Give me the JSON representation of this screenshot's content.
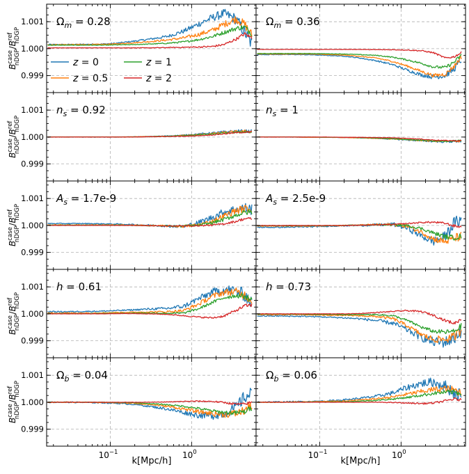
{
  "chart_data": {
    "type": "line",
    "xscale": "log",
    "xlim": [
      0.0165,
      6.2
    ],
    "ylim": [
      0.99837,
      1.00165
    ],
    "xlabel": "k[Mpc/h]",
    "ylabel": {
      "main": "B",
      "sup": "case",
      "sub": "nDGP",
      "den_main": "B",
      "den_sup": "ref",
      "den_sub": "nDGP"
    },
    "x_ticks": [
      {
        "value": 0.1,
        "base": "10",
        "exp": "−1"
      },
      {
        "value": 1,
        "base": "10",
        "exp": "0"
      }
    ],
    "y_ticks": [
      {
        "value": 0.999,
        "label": "0.999"
      },
      {
        "value": 1.0,
        "label": "1.000"
      },
      {
        "value": 1.001,
        "label": "1.001"
      }
    ],
    "legend": {
      "location": "first-panel-lower-left",
      "entries": [
        {
          "series": 0,
          "label": "z = 0"
        },
        {
          "series": 1,
          "label": "z = 0.5"
        },
        {
          "series": 2,
          "label": "z = 1"
        },
        {
          "series": 3,
          "label": "z = 2"
        }
      ]
    },
    "series": [
      {
        "name": "z = 0",
        "color": "#1f77b4"
      },
      {
        "name": "z = 0.5",
        "color": "#ff7f0e"
      },
      {
        "name": "z = 1",
        "color": "#2ca02c"
      },
      {
        "name": "z = 2",
        "color": "#d62728"
      }
    ],
    "k": [
      0.017,
      0.03,
      0.05,
      0.08,
      0.12,
      0.2,
      0.3,
      0.5,
      0.8,
      1.2,
      1.8,
      2.5,
      3.5,
      4.5,
      5.5
    ],
    "panels": [
      {
        "label_sym": "Ω",
        "label_sub": "m",
        "label_val": "0.28",
        "noise": [
          0.00025,
          0.00017,
          0.0001,
          6e-05
        ],
        "values": [
          [
            1.00015,
            1.00015,
            1.00016,
            1.00017,
            1.0002,
            1.00028,
            1.00035,
            1.00045,
            1.00065,
            1.0009,
            1.00115,
            1.0013,
            1.0011,
            1.0006,
            1.00015
          ],
          [
            1.00015,
            1.00015,
            1.00015,
            1.00016,
            1.00018,
            1.00022,
            1.00026,
            1.00032,
            1.0004,
            1.00052,
            1.00068,
            1.0009,
            1.0011,
            1.0009,
            1.0005
          ],
          [
            1.00013,
            1.00013,
            1.00013,
            1.00013,
            1.00014,
            1.00015,
            1.00017,
            1.0002,
            1.00025,
            1.00033,
            1.00045,
            1.0006,
            1.00075,
            1.0008,
            1.00055
          ],
          [
            1.00003,
            1.00003,
            1.00003,
            1.00003,
            1.00003,
            1.00003,
            1.00003,
            1.00004,
            1.00005,
            1.00006,
            1.00008,
            1.00015,
            1.00035,
            1.00055,
            1.0004
          ]
        ]
      },
      {
        "label_sym": "Ω",
        "label_sub": "m",
        "label_val": "0.36",
        "noise": [
          0.00012,
          9e-05,
          7e-05,
          4e-05
        ],
        "values": [
          [
            0.99978,
            0.99978,
            0.99978,
            0.99977,
            0.99975,
            0.99972,
            0.99966,
            0.99955,
            0.9994,
            0.9992,
            0.99902,
            0.99895,
            0.999,
            0.99925,
            0.9996
          ],
          [
            0.9998,
            0.9998,
            0.9998,
            0.9998,
            0.99978,
            0.99976,
            0.99972,
            0.99965,
            0.99952,
            0.99935,
            0.99915,
            0.999,
            0.99905,
            0.99935,
            0.9997
          ],
          [
            0.99982,
            0.99982,
            0.99982,
            0.99982,
            0.99981,
            0.9998,
            0.99978,
            0.99975,
            0.99968,
            0.99958,
            0.99945,
            0.99932,
            0.9993,
            0.9995,
            0.99975
          ],
          [
            0.99997,
            0.99997,
            0.99997,
            0.99997,
            0.99997,
            0.99997,
            0.99997,
            0.99996,
            0.99996,
            0.99995,
            0.99992,
            0.99985,
            0.99965,
            0.9997,
            0.99985
          ]
        ]
      },
      {
        "label_sym": "n",
        "label_sub": "s",
        "label_val": "0.92",
        "noise": [
          6e-05,
          5e-05,
          4e-05,
          3e-05
        ],
        "values": [
          [
            1.0,
            1.0,
            1.0,
            1.0,
            1.0,
            1.00001,
            1.00002,
            1.00004,
            1.00007,
            1.00011,
            1.00015,
            1.00019,
            1.00022,
            1.00022,
            1.0002
          ],
          [
            1.0,
            1.0,
            1.0,
            1.0,
            1.0,
            1.00001,
            1.00002,
            1.00003,
            1.00006,
            1.00009,
            1.00013,
            1.00017,
            1.0002,
            1.00021,
            1.0002
          ],
          [
            1.0,
            1.0,
            1.0,
            1.0,
            1.0,
            1.0,
            1.00001,
            1.00003,
            1.00005,
            1.00008,
            1.00011,
            1.00015,
            1.00018,
            1.0002,
            1.00019
          ],
          [
            1.0,
            1.0,
            1.0,
            1.0,
            1.0,
            1.0,
            1.00001,
            1.00002,
            1.00003,
            1.00005,
            1.00008,
            1.00012,
            1.00016,
            1.00018,
            1.00018
          ]
        ]
      },
      {
        "label_sym": "n",
        "label_sub": "s",
        "label_val": "1",
        "noise": [
          5e-05,
          4e-05,
          3e-05,
          2e-05
        ],
        "values": [
          [
            1.0,
            1.0,
            1.0,
            0.99999,
            0.99999,
            0.99998,
            0.99997,
            0.99995,
            0.99992,
            0.99989,
            0.99986,
            0.99984,
            0.99983,
            0.99984,
            0.99985
          ],
          [
            1.0,
            1.0,
            1.0,
            0.99999,
            0.99999,
            0.99998,
            0.99997,
            0.99995,
            0.99993,
            0.9999,
            0.99987,
            0.99985,
            0.99984,
            0.99985,
            0.99986
          ],
          [
            1.0,
            1.0,
            1.0,
            1.0,
            0.99999,
            0.99999,
            0.99998,
            0.99996,
            0.99994,
            0.99991,
            0.99988,
            0.99986,
            0.99985,
            0.99985,
            0.99986
          ],
          [
            1.0,
            1.0,
            1.0,
            1.0,
            1.0,
            0.99999,
            0.99999,
            0.99998,
            0.99997,
            0.99995,
            0.99992,
            0.99989,
            0.99987,
            0.99986,
            0.99987
          ]
        ]
      },
      {
        "label_sym": "A",
        "label_sub": "s",
        "label_val": "1.7e-9",
        "noise": [
          0.0002,
          0.00015,
          0.0001,
          5e-05
        ],
        "values": [
          [
            1.00007,
            1.00007,
            1.00007,
            1.00006,
            1.00005,
            1.00003,
            1.00001,
            0.99998,
            0.99996,
            1.0001,
            1.0003,
            1.0005,
            1.0006,
            1.00065,
            1.0006
          ],
          [
            1.00002,
            1.00002,
            1.00002,
            1.00002,
            1.00002,
            1.00001,
            1.0,
            0.99998,
            0.99997,
            1.00002,
            1.00015,
            1.00035,
            1.00055,
            1.00062,
            1.0006
          ],
          [
            1.00001,
            1.00001,
            1.00001,
            1.00001,
            1.00001,
            1.0,
            0.99999,
            0.99998,
            0.99998,
            1.0,
            1.0001,
            1.00022,
            1.00038,
            1.00048,
            1.0005
          ],
          [
            1.0,
            1.0,
            1.0,
            1.0,
            1.0,
            1.0,
            0.99999,
            0.99998,
            0.99998,
            0.99999,
            1.00001,
            1.00006,
            1.00015,
            1.00025,
            1.00025
          ]
        ]
      },
      {
        "label_sym": "A",
        "label_sub": "s",
        "label_val": "2.5e-9",
        "noise": [
          0.00022,
          0.00016,
          0.0001,
          5e-05
        ],
        "values": [
          [
            0.99993,
            0.99993,
            0.99994,
            0.99995,
            0.99997,
            0.99999,
            1.0,
            1.00002,
            1.00004,
            0.9999,
            0.9996,
            0.9994,
            0.9996,
            1.0001,
            1.0002
          ],
          [
            0.99998,
            0.99998,
            0.99998,
            0.99998,
            0.99999,
            1.0,
            1.00001,
            1.00003,
            1.00003,
            0.99997,
            0.99975,
            0.9995,
            0.9994,
            0.99952,
            0.9996
          ],
          [
            0.99999,
            0.99999,
            0.99999,
            0.99999,
            0.99999,
            1.0,
            1.00001,
            1.00002,
            1.00003,
            0.99999,
            0.99988,
            0.99972,
            0.99958,
            0.99955,
            0.9996
          ],
          [
            1.0,
            1.0,
            1.0,
            1.0,
            1.0,
            1.0,
            1.00001,
            1.00002,
            1.00004,
            1.00007,
            1.00011,
            1.00012,
            1.00008,
            0.99998,
            0.99995
          ]
        ]
      },
      {
        "label_sym": "h",
        "label_sub": "",
        "label_val": "0.61",
        "noise": [
          0.00025,
          0.00017,
          0.0001,
          6e-05
        ],
        "values": [
          [
            1.00008,
            1.00008,
            1.00009,
            1.0001,
            1.00012,
            1.00015,
            1.00018,
            1.0002,
            1.00028,
            1.00055,
            1.0008,
            1.0009,
            1.00085,
            1.0007,
            1.0004
          ],
          [
            1.00003,
            1.00003,
            1.00003,
            1.00004,
            1.00005,
            1.00006,
            1.00007,
            1.00008,
            1.00012,
            1.00035,
            1.00065,
            1.0008,
            1.00082,
            1.0007,
            1.0005
          ],
          [
            1.00001,
            1.00001,
            1.00001,
            1.00002,
            1.00002,
            1.00003,
            1.00003,
            1.00002,
            1.00003,
            1.00018,
            1.00042,
            1.0006,
            1.00068,
            1.00065,
            1.0005
          ],
          [
            1.0,
            1.0,
            1.0,
            1.0,
            1.00001,
            1.00001,
            1.0,
            0.99998,
            0.99993,
            0.99988,
            0.99985,
            0.99992,
            1.00012,
            1.0003,
            1.00032
          ]
        ]
      },
      {
        "label_sym": "h",
        "label_sub": "",
        "label_val": "0.73",
        "noise": [
          0.00025,
          0.00017,
          0.0001,
          6e-05
        ],
        "values": [
          [
            0.99992,
            0.99992,
            0.99991,
            0.9999,
            0.99988,
            0.99985,
            0.99982,
            0.99975,
            0.99965,
            0.9994,
            0.99912,
            0.99895,
            0.99895,
            0.9991,
            0.9994
          ],
          [
            0.99997,
            0.99997,
            0.99997,
            0.99996,
            0.99995,
            0.99994,
            0.99993,
            0.9999,
            0.99982,
            0.99955,
            0.99922,
            0.99905,
            0.99905,
            0.99915,
            0.9994
          ],
          [
            0.99999,
            0.99999,
            0.99999,
            0.99998,
            0.99998,
            0.99997,
            0.99997,
            0.99997,
            0.99993,
            0.99975,
            0.9995,
            0.99935,
            0.99932,
            0.99935,
            0.99955
          ],
          [
            1.0,
            1.0,
            1.0,
            1.0,
            1.0,
            1.0,
            1.00001,
            1.00005,
            1.00009,
            1.00012,
            1.00008,
            0.99995,
            0.99975,
            0.99965,
            0.9998
          ]
        ]
      },
      {
        "label_sym": "Ω",
        "label_sub": "b",
        "label_val": "0.04",
        "noise": [
          0.00025,
          0.00017,
          0.0001,
          5e-05
        ],
        "values": [
          [
            1.0,
            1.0,
            0.99999,
            0.99998,
            0.99996,
            0.99992,
            0.99985,
            0.99975,
            0.99962,
            0.99952,
            0.9995,
            0.99958,
            0.9998,
            1.0002,
            1.0003
          ],
          [
            1.0,
            1.0,
            1.0,
            0.99999,
            0.99998,
            0.99996,
            0.99992,
            0.99985,
            0.99975,
            0.99965,
            0.99958,
            0.99955,
            0.99958,
            0.9997,
            0.9999
          ],
          [
            1.0,
            1.0,
            1.0,
            1.0,
            0.99999,
            0.99998,
            0.99995,
            0.99991,
            0.99985,
            0.99977,
            0.99968,
            0.99962,
            0.9996,
            0.99965,
            0.9998
          ],
          [
            1.0,
            1.0,
            1.0,
            1.0,
            1.0,
            1.0,
            1.0,
            1.00001,
            1.00003,
            1.00004,
            1.00003,
            0.99999,
            0.99993,
            0.99993,
            1.0
          ]
        ]
      },
      {
        "label_sym": "Ω",
        "label_sub": "b",
        "label_val": "0.06",
        "noise": [
          0.00025,
          0.00015,
          9e-05,
          5e-05
        ],
        "values": [
          [
            1.00001,
            1.00001,
            1.00002,
            1.00003,
            1.00005,
            1.00009,
            1.00014,
            1.00022,
            1.00035,
            1.00055,
            1.0007,
            1.00075,
            1.0006,
            1.00035,
            1.00025
          ],
          [
            1.0,
            1.0,
            1.00001,
            1.00002,
            1.00003,
            1.00005,
            1.00008,
            1.00013,
            1.0002,
            1.0003,
            1.0004,
            1.00047,
            1.0005,
            1.00045,
            1.00035
          ],
          [
            1.0,
            1.0,
            1.0,
            1.00001,
            1.00001,
            1.00002,
            1.00004,
            1.00007,
            1.00012,
            1.00018,
            1.00026,
            1.00033,
            1.00037,
            1.00038,
            1.00032
          ],
          [
            1.0,
            1.0,
            1.0,
            1.0,
            1.0,
            1.0,
            1.0,
            1.0,
            0.99999,
            0.99997,
            0.99995,
            0.99997,
            1.00005,
            1.00012,
            1.00008
          ]
        ]
      }
    ]
  }
}
